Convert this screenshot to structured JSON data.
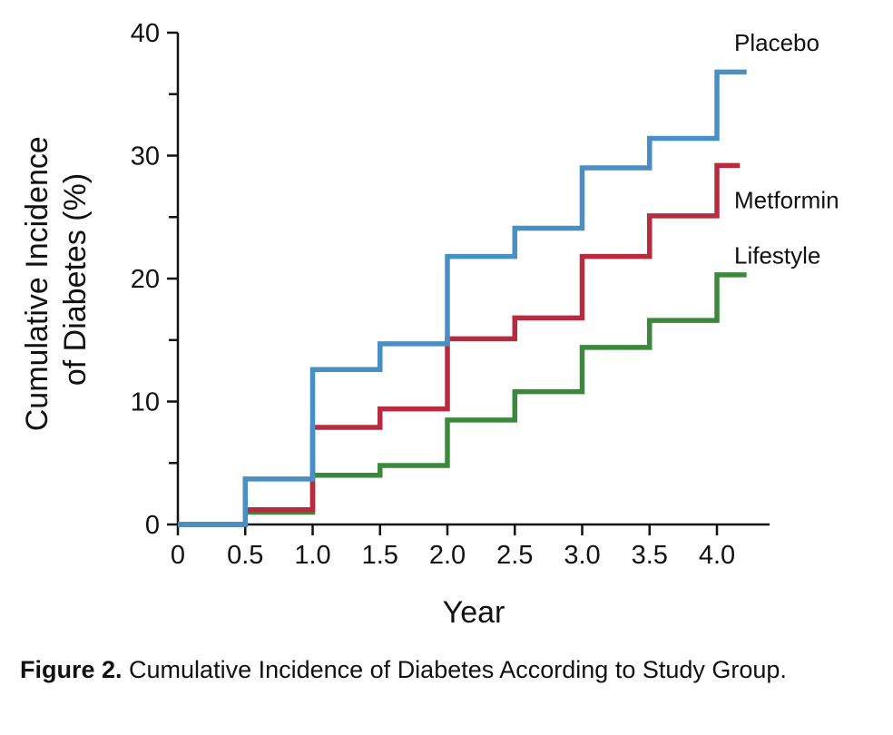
{
  "chart_data": {
    "type": "line",
    "step": true,
    "xlabel": "Year",
    "ylabel": "Cumulative Incidence of Diabetes (%)",
    "ylabel_lines": [
      "Cumulative Incidence",
      "of Diabetes (%)"
    ],
    "xlim": [
      0,
      4.2
    ],
    "ylim": [
      0,
      40
    ],
    "x_ticks": [
      0,
      0.5,
      1.0,
      1.5,
      2.0,
      2.5,
      3.0,
      3.5,
      4.0
    ],
    "x_tick_labels": [
      "0",
      "0.5",
      "1.0",
      "1.5",
      "2.0",
      "2.5",
      "3.0",
      "3.5",
      "4.0"
    ],
    "y_ticks": [
      0,
      10,
      20,
      30,
      40
    ],
    "y_tick_labels": [
      "0",
      "10",
      "20",
      "30",
      "40"
    ],
    "y_minor_ticks": [
      5,
      15,
      25,
      35
    ],
    "grid": false,
    "legend": "direct-labels-right",
    "series": [
      {
        "name": "Placebo",
        "color": "#4a8fc4",
        "x": [
          0,
          0.5,
          1.0,
          1.5,
          2.0,
          2.5,
          3.0,
          3.5,
          4.0,
          4.22
        ],
        "y": [
          0,
          3.7,
          12.6,
          14.7,
          21.8,
          24.1,
          29.0,
          31.4,
          36.8,
          36.8
        ]
      },
      {
        "name": "Metformin",
        "color": "#b82a3f",
        "x": [
          0,
          0.5,
          1.0,
          1.5,
          2.0,
          2.5,
          3.0,
          3.5,
          4.0,
          4.17
        ],
        "y": [
          0,
          1.2,
          7.9,
          9.4,
          15.1,
          16.8,
          21.8,
          25.1,
          29.2,
          29.2
        ]
      },
      {
        "name": "Lifestyle",
        "color": "#3b8a3c",
        "x": [
          0,
          0.5,
          1.0,
          1.5,
          2.0,
          2.5,
          3.0,
          3.5,
          4.0,
          4.22
        ],
        "y": [
          0,
          1.0,
          4.0,
          4.8,
          8.5,
          10.8,
          14.4,
          16.6,
          20.3,
          20.3
        ]
      }
    ]
  },
  "caption": {
    "label": "Figure 2.",
    "text": " Cumulative Incidence of Diabetes According to Study Group."
  }
}
